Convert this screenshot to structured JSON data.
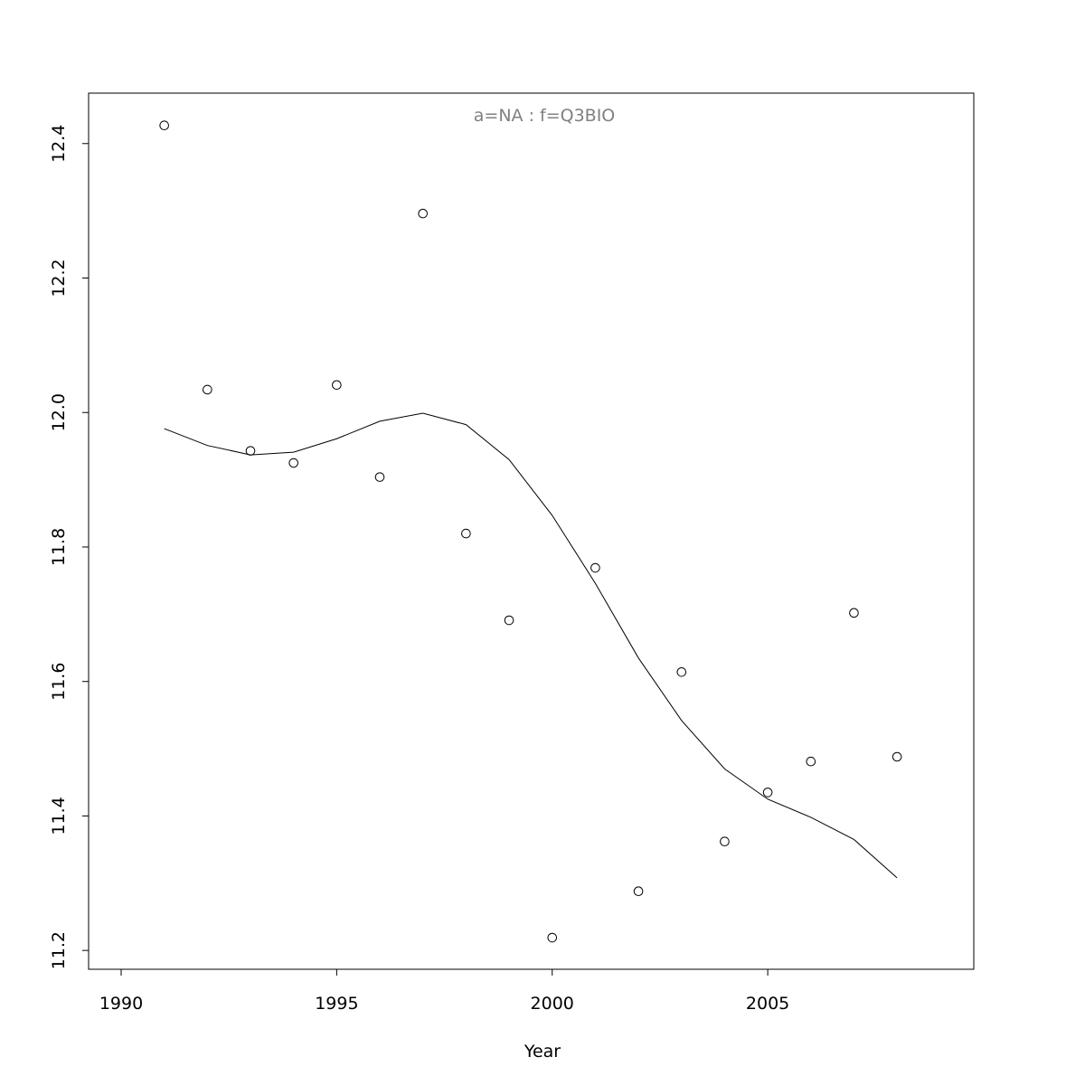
{
  "chart_data": {
    "type": "scatter",
    "title": "a=NA  :  f=Q3BIO",
    "x_label": "Year",
    "x": [
      1991,
      1992,
      1993,
      1994,
      1995,
      1996,
      1997,
      1998,
      1999,
      2000,
      2001,
      2002,
      2003,
      2004,
      2005,
      2006,
      2007,
      2008
    ],
    "series": [
      {
        "type": "scatter",
        "color": "#000000",
        "values": [
          12.427,
          12.034,
          11.943,
          11.925,
          12.041,
          11.904,
          12.296,
          11.82,
          11.691,
          11.219,
          11.769,
          11.288,
          11.614,
          11.362,
          11.435,
          11.481,
          11.702,
          11.488
        ]
      },
      {
        "type": "line",
        "color": "#000000",
        "values": [
          11.976,
          11.951,
          11.937,
          11.941,
          11.961,
          11.987,
          11.999,
          11.982,
          11.93,
          11.847,
          11.746,
          11.635,
          11.542,
          11.47,
          11.425,
          11.398,
          11.365,
          11.308
        ]
      }
    ],
    "xlim": [
      1989.245,
      2009.78
    ],
    "ylim": [
      11.172,
      12.475
    ],
    "xticks": [
      1990,
      1995,
      2000,
      2005
    ],
    "yticks": [
      11.2,
      11.4,
      11.6,
      11.8,
      {
        "value": 12,
        "label": "12.0"
      },
      12.2,
      12.4
    ],
    "grid": false
  }
}
